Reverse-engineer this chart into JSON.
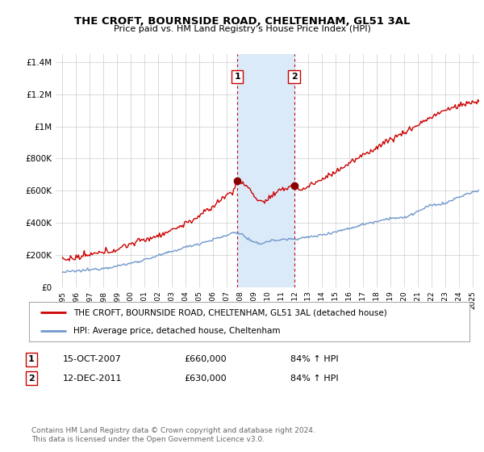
{
  "title1": "THE CROFT, BOURNSIDE ROAD, CHELTENHAM, GL51 3AL",
  "title2": "Price paid vs. HM Land Registry's House Price Index (HPI)",
  "ylim": [
    0,
    1450000
  ],
  "yticks": [
    0,
    200000,
    400000,
    600000,
    800000,
    1000000,
    1200000,
    1400000
  ],
  "ytick_labels": [
    "£0",
    "£200K",
    "£400K",
    "£600K",
    "£800K",
    "£1M",
    "£1.2M",
    "£1.4M"
  ],
  "xlim_start": 1994.5,
  "xlim_end": 2025.5,
  "transaction1": {
    "date_x": 2007.79,
    "price": 660000,
    "label": "1",
    "date_str": "15-OCT-2007",
    "hpi_pct": "84%"
  },
  "transaction2": {
    "date_x": 2011.95,
    "price": 630000,
    "label": "2",
    "date_str": "12-DEC-2011",
    "hpi_pct": "84%"
  },
  "legend_property": "THE CROFT, BOURNSIDE ROAD, CHELTENHAM, GL51 3AL (detached house)",
  "legend_hpi": "HPI: Average price, detached house, Cheltenham",
  "footer": "Contains HM Land Registry data © Crown copyright and database right 2024.\nThis data is licensed under the Open Government Licence v3.0.",
  "property_color": "#cc0000",
  "hpi_color": "#7099cc",
  "shade_color": "#daeaf8",
  "vline_color": "#cc0000",
  "background_color": "#ffffff",
  "grid_color": "#cccccc"
}
